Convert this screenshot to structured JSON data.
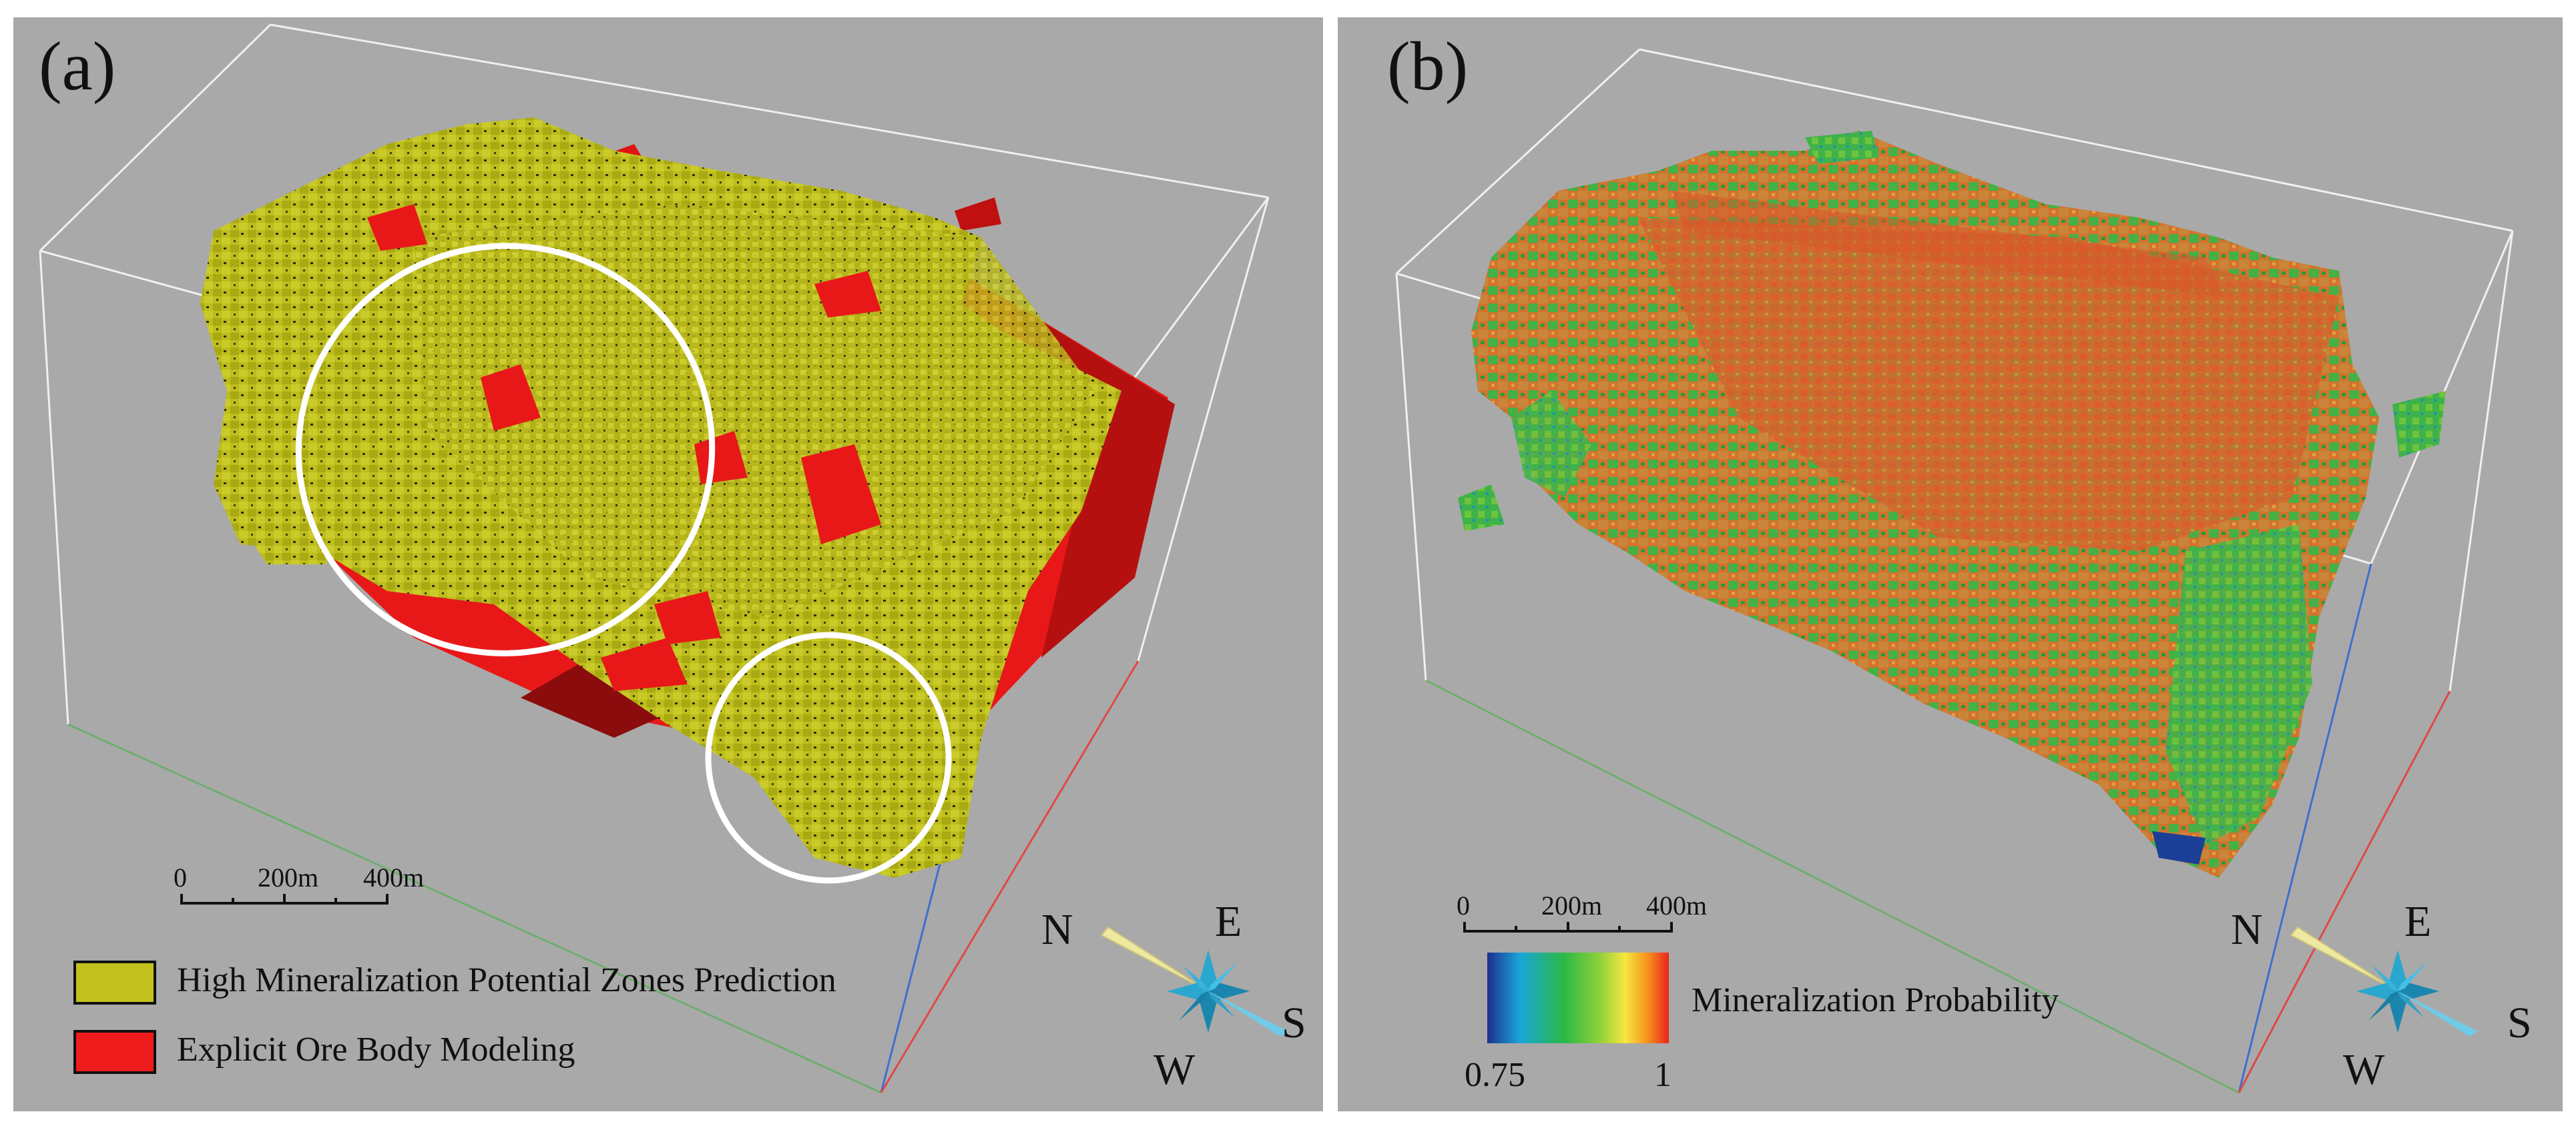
{
  "panel_a": {
    "label": "(a)",
    "scale_bar": {
      "ticks": [
        "0",
        "200m",
        "400m"
      ]
    },
    "legend": [
      {
        "label": "High Mineralization Potential Zones Prediction",
        "color": "#c2c21e"
      },
      {
        "label": "Explicit Ore Body Modeling",
        "color": "#ee1c1c"
      }
    ],
    "compass": {
      "north": "N",
      "east": "E",
      "south": "S",
      "west": "W"
    }
  },
  "panel_b": {
    "label": "(b)",
    "scale_bar": {
      "ticks": [
        "0",
        "200m",
        "400m"
      ]
    },
    "colorbar": {
      "title": "Mineralization Probability",
      "min_label": "0.75",
      "max_label": "1",
      "min_value": 0.75,
      "max_value": 1,
      "colors": [
        "#1b2f8f",
        "#1aa6d8",
        "#2bb845",
        "#8fd13a",
        "#f5e640",
        "#f7941d",
        "#e8251c"
      ]
    },
    "compass": {
      "north": "N",
      "east": "E",
      "south": "S",
      "west": "W"
    }
  },
  "colors": {
    "background": "#a9a9a9",
    "box_lines": "#f2f2f2",
    "ore_red": "#ee1c1c",
    "potential_yellow": "#c2c21e",
    "highlight_circle": "#ffffff",
    "compass_blue": "#2aa7cf",
    "compass_needle": "#efe8a0"
  }
}
